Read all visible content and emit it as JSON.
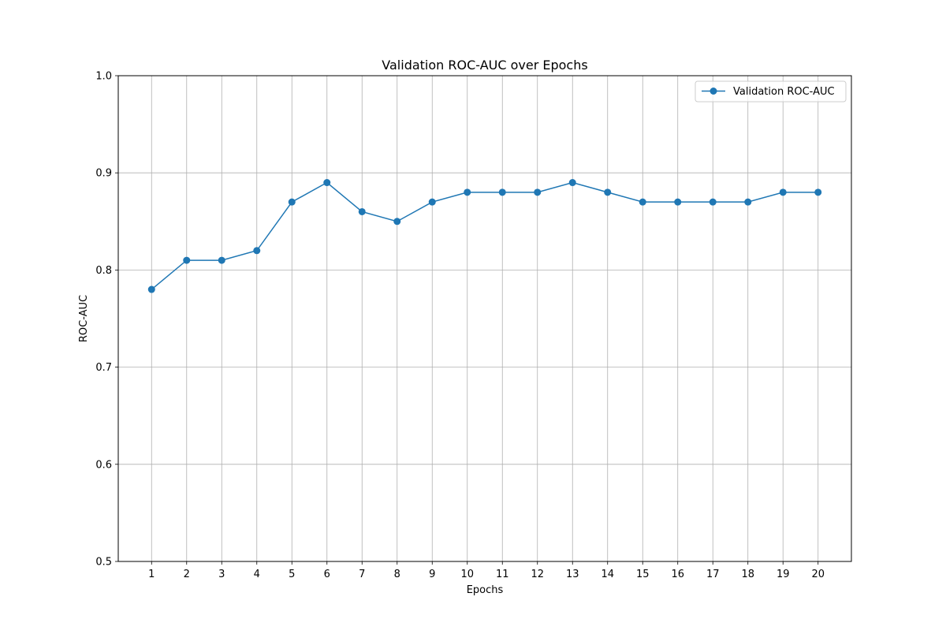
{
  "chart_data": {
    "type": "line",
    "title": "Validation ROC-AUC over Epochs",
    "xlabel": "Epochs",
    "ylabel": "ROC-AUC",
    "x": [
      1,
      2,
      3,
      4,
      5,
      6,
      7,
      8,
      9,
      10,
      11,
      12,
      13,
      14,
      15,
      16,
      17,
      18,
      19,
      20
    ],
    "xticks": [
      "1",
      "2",
      "3",
      "4",
      "5",
      "6",
      "7",
      "8",
      "9",
      "10",
      "11",
      "12",
      "13",
      "14",
      "15",
      "16",
      "17",
      "18",
      "19",
      "20"
    ],
    "xlim": [
      0.05,
      20.95
    ],
    "ylim": [
      0.5,
      1.0
    ],
    "yticks": [
      0.5,
      0.6,
      0.7,
      0.8,
      0.9,
      1.0
    ],
    "ytick_labels": [
      "0.5",
      "0.6",
      "0.7",
      "0.8",
      "0.9",
      "1.0"
    ],
    "grid": true,
    "legend_position": "top-right",
    "series": [
      {
        "name": "Validation ROC-AUC",
        "color": "#1f77b4",
        "marker": "circle",
        "values": [
          0.78,
          0.81,
          0.81,
          0.82,
          0.87,
          0.89,
          0.86,
          0.85,
          0.87,
          0.88,
          0.88,
          0.88,
          0.89,
          0.88,
          0.87,
          0.87,
          0.87,
          0.87,
          0.88,
          0.88
        ]
      }
    ]
  }
}
